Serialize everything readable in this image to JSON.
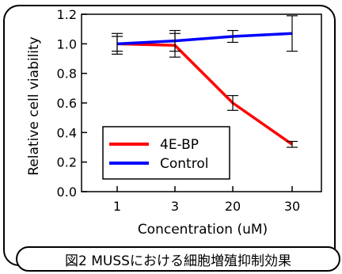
{
  "caption": "図2 MUSSにおける細胞増殖抑制効果",
  "chart_data": {
    "type": "line",
    "categories": [
      "1",
      "3",
      "20",
      "30"
    ],
    "xlabel": "Concentration (uM)",
    "ylabel": "Relative cell viability",
    "ylim": [
      0.0,
      1.2
    ],
    "yticks": [
      "0.0",
      "0.2",
      "0.4",
      "0.6",
      "0.8",
      "1.0",
      "1.2"
    ],
    "grid": false,
    "legend_position": "lower-left",
    "series": [
      {
        "name": "4E-BP",
        "color": "#ff0000",
        "values": [
          1.0,
          0.99,
          0.6,
          0.32
        ],
        "errors": [
          0.07,
          0.08,
          0.05,
          0.02
        ]
      },
      {
        "name": "Control",
        "color": "#0000ff",
        "values": [
          1.0,
          1.02,
          1.05,
          1.07
        ],
        "errors": [
          0.05,
          0.07,
          0.04,
          0.12
        ]
      }
    ]
  }
}
